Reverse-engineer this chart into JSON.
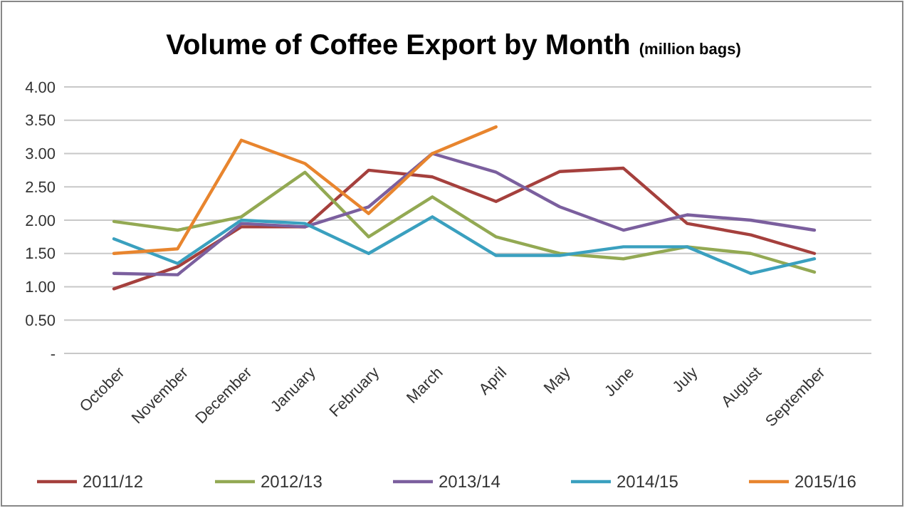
{
  "chart_data": {
    "type": "line",
    "title": "Volume of Coffee Export by Month",
    "subtitle": "(million bags)",
    "categories": [
      "October",
      "November",
      "December",
      "January",
      "February",
      "March",
      "April",
      "May",
      "June",
      "July",
      "August",
      "September"
    ],
    "series": [
      {
        "name": "2011/12",
        "color": "#a5403d",
        "values": [
          0.97,
          1.3,
          1.9,
          1.9,
          2.75,
          2.65,
          2.28,
          2.73,
          2.78,
          1.95,
          1.78,
          1.5
        ]
      },
      {
        "name": "2012/13",
        "color": "#93a953",
        "values": [
          1.98,
          1.85,
          2.05,
          2.72,
          1.75,
          2.35,
          1.75,
          1.5,
          1.42,
          1.6,
          1.5,
          1.22
        ]
      },
      {
        "name": "2013/14",
        "color": "#7b5f9e",
        "values": [
          1.2,
          1.18,
          1.95,
          1.9,
          2.2,
          3.0,
          2.72,
          2.2,
          1.85,
          2.08,
          2.0,
          1.85
        ]
      },
      {
        "name": "2014/15",
        "color": "#3aa0bf",
        "values": [
          1.72,
          1.35,
          2.0,
          1.95,
          1.5,
          2.05,
          1.47,
          1.47,
          1.6,
          1.6,
          1.2,
          1.42
        ]
      },
      {
        "name": "2015/16",
        "color": "#e8852e",
        "values": [
          1.5,
          1.57,
          3.2,
          2.85,
          2.1,
          3.0,
          3.4,
          null,
          null,
          null,
          null,
          null
        ]
      }
    ],
    "ylim": [
      0,
      4
    ],
    "yticks": [
      {
        "value": 0,
        "label": "-"
      },
      {
        "value": 0.5,
        "label": "0.50"
      },
      {
        "value": 1,
        "label": "1.00"
      },
      {
        "value": 1.5,
        "label": "1.50"
      },
      {
        "value": 2,
        "label": "2.00"
      },
      {
        "value": 2.5,
        "label": "2.50"
      },
      {
        "value": 3,
        "label": "3.00"
      },
      {
        "value": 3.5,
        "label": "3.50"
      },
      {
        "value": 4,
        "label": "4.00"
      }
    ],
    "grid": "y",
    "legend": "bottom",
    "marker": "none",
    "line_style": "solid"
  }
}
